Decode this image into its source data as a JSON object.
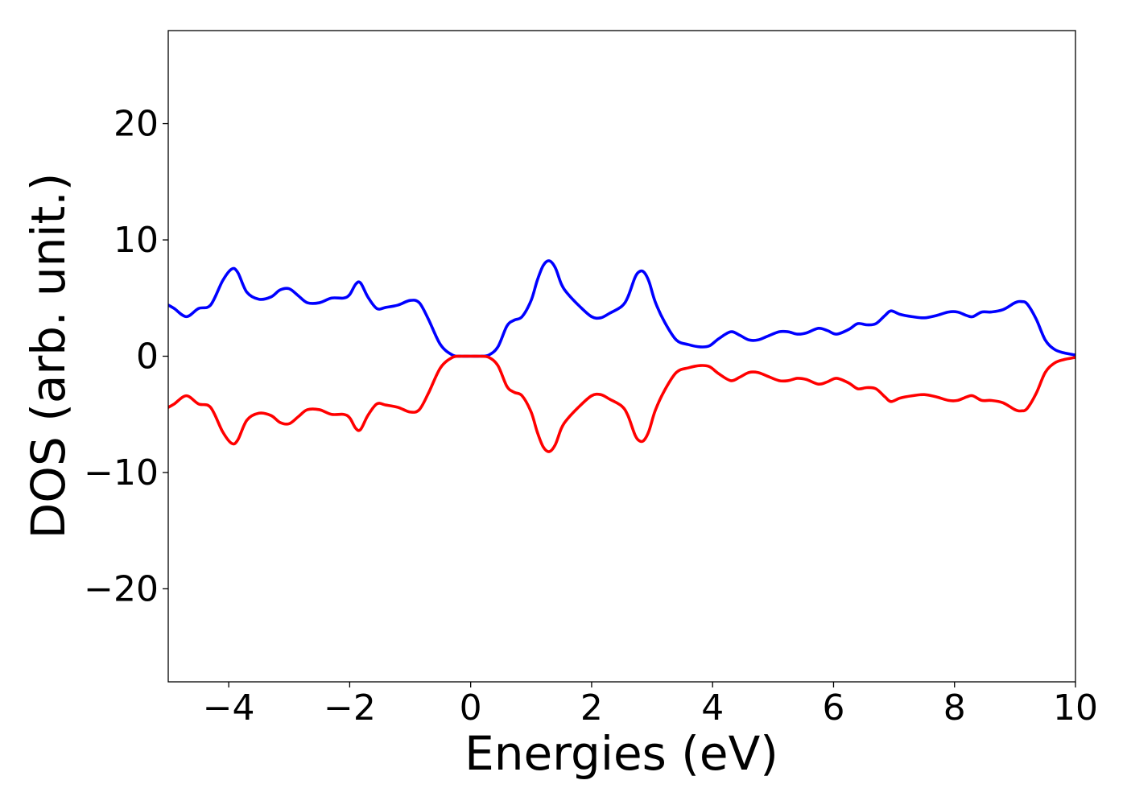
{
  "chart_data": {
    "type": "line",
    "xlabel": "Energies (eV)",
    "ylabel": "DOS (arb. unit.)",
    "xlim": [
      -5,
      10
    ],
    "ylim": [
      -28,
      28
    ],
    "grid": false,
    "x_ticks": [
      -4,
      -2,
      0,
      2,
      4,
      6,
      8,
      10
    ],
    "x_tick_labels": [
      "−4",
      "−2",
      "0",
      "2",
      "4",
      "6",
      "8",
      "10"
    ],
    "y_ticks": [
      -20,
      -10,
      0,
      10,
      20
    ],
    "y_tick_labels": [
      "−20",
      "−10",
      "0",
      "10",
      "20"
    ],
    "series": [
      {
        "color": "#0000ff",
        "x": [
          -5.0,
          -4.9,
          -4.7,
          -4.5,
          -4.3,
          -4.1,
          -3.95,
          -3.85,
          -3.7,
          -3.5,
          -3.3,
          -3.15,
          -3.0,
          -2.85,
          -2.7,
          -2.5,
          -2.3,
          -2.1,
          -2.0,
          -1.9,
          -1.82,
          -1.7,
          -1.55,
          -1.4,
          -1.2,
          -1.0,
          -0.85,
          -0.7,
          -0.5,
          -0.3,
          -0.15,
          0.0,
          0.15,
          0.3,
          0.45,
          0.6,
          0.72,
          0.85,
          1.0,
          1.1,
          1.2,
          1.3,
          1.4,
          1.5,
          1.6,
          1.8,
          2.0,
          2.15,
          2.3,
          2.5,
          2.6,
          2.72,
          2.8,
          2.87,
          2.95,
          3.05,
          3.2,
          3.4,
          3.6,
          3.8,
          3.95,
          4.1,
          4.3,
          4.45,
          4.6,
          4.75,
          4.9,
          5.1,
          5.25,
          5.4,
          5.55,
          5.75,
          5.9,
          6.05,
          6.25,
          6.4,
          6.55,
          6.7,
          6.85,
          6.95,
          7.1,
          7.3,
          7.5,
          7.7,
          7.9,
          8.05,
          8.2,
          8.3,
          8.45,
          8.6,
          8.8,
          9.0,
          9.1,
          9.2,
          9.35,
          9.5,
          9.65,
          9.8,
          10.0
        ],
        "y": [
          4.4,
          4.1,
          3.4,
          4.1,
          4.4,
          6.5,
          7.5,
          7.2,
          5.5,
          4.9,
          5.1,
          5.7,
          5.8,
          5.2,
          4.6,
          4.6,
          5.0,
          5.0,
          5.3,
          6.2,
          6.3,
          5.1,
          4.1,
          4.2,
          4.4,
          4.8,
          4.6,
          3.2,
          1.0,
          0.1,
          0.0,
          0.0,
          0.0,
          0.1,
          0.8,
          2.6,
          3.1,
          3.4,
          4.8,
          6.5,
          7.8,
          8.2,
          7.6,
          6.2,
          5.4,
          4.3,
          3.4,
          3.3,
          3.7,
          4.3,
          5.1,
          6.8,
          7.3,
          7.2,
          6.4,
          4.7,
          3.0,
          1.4,
          1.0,
          0.8,
          0.9,
          1.5,
          2.1,
          1.8,
          1.4,
          1.4,
          1.7,
          2.1,
          2.1,
          1.9,
          2.0,
          2.4,
          2.2,
          1.9,
          2.3,
          2.8,
          2.7,
          2.8,
          3.5,
          3.9,
          3.6,
          3.4,
          3.3,
          3.5,
          3.8,
          3.8,
          3.5,
          3.4,
          3.8,
          3.8,
          4.0,
          4.6,
          4.7,
          4.5,
          3.2,
          1.4,
          0.6,
          0.3,
          0.1
        ]
      },
      {
        "color": "#ff0000",
        "x": [
          -5.0,
          -4.9,
          -4.7,
          -4.5,
          -4.3,
          -4.1,
          -3.95,
          -3.85,
          -3.7,
          -3.5,
          -3.3,
          -3.15,
          -3.0,
          -2.85,
          -2.7,
          -2.5,
          -2.3,
          -2.1,
          -2.0,
          -1.9,
          -1.82,
          -1.7,
          -1.55,
          -1.4,
          -1.2,
          -1.0,
          -0.85,
          -0.7,
          -0.5,
          -0.3,
          -0.15,
          0.0,
          0.15,
          0.3,
          0.45,
          0.6,
          0.72,
          0.85,
          1.0,
          1.1,
          1.2,
          1.3,
          1.4,
          1.5,
          1.6,
          1.8,
          2.0,
          2.15,
          2.3,
          2.5,
          2.6,
          2.72,
          2.8,
          2.87,
          2.95,
          3.05,
          3.2,
          3.4,
          3.6,
          3.8,
          3.95,
          4.1,
          4.3,
          4.45,
          4.6,
          4.75,
          4.9,
          5.1,
          5.25,
          5.4,
          5.55,
          5.75,
          5.9,
          6.05,
          6.25,
          6.4,
          6.55,
          6.7,
          6.85,
          6.95,
          7.1,
          7.3,
          7.5,
          7.7,
          7.9,
          8.05,
          8.2,
          8.3,
          8.45,
          8.6,
          8.8,
          9.0,
          9.1,
          9.2,
          9.35,
          9.5,
          9.65,
          9.8,
          10.0
        ],
        "y": [
          -4.4,
          -4.1,
          -3.4,
          -4.1,
          -4.4,
          -6.5,
          -7.5,
          -7.2,
          -5.5,
          -4.9,
          -5.1,
          -5.7,
          -5.8,
          -5.2,
          -4.6,
          -4.6,
          -5.0,
          -5.0,
          -5.3,
          -6.2,
          -6.3,
          -5.1,
          -4.1,
          -4.2,
          -4.4,
          -4.8,
          -4.6,
          -3.2,
          -1.0,
          -0.1,
          0.0,
          0.0,
          0.0,
          -0.1,
          -0.8,
          -2.6,
          -3.1,
          -3.4,
          -4.8,
          -6.5,
          -7.8,
          -8.2,
          -7.6,
          -6.2,
          -5.4,
          -4.3,
          -3.4,
          -3.3,
          -3.7,
          -4.3,
          -5.1,
          -6.8,
          -7.3,
          -7.2,
          -6.4,
          -4.7,
          -3.0,
          -1.4,
          -1.0,
          -0.8,
          -0.9,
          -1.5,
          -2.1,
          -1.8,
          -1.4,
          -1.4,
          -1.7,
          -2.1,
          -2.1,
          -1.9,
          -2.0,
          -2.4,
          -2.2,
          -1.9,
          -2.3,
          -2.8,
          -2.7,
          -2.8,
          -3.5,
          -3.9,
          -3.6,
          -3.4,
          -3.3,
          -3.5,
          -3.8,
          -3.8,
          -3.5,
          -3.4,
          -3.8,
          -3.8,
          -4.0,
          -4.6,
          -4.7,
          -4.5,
          -3.2,
          -1.4,
          -0.6,
          -0.3,
          -0.1
        ]
      }
    ]
  }
}
